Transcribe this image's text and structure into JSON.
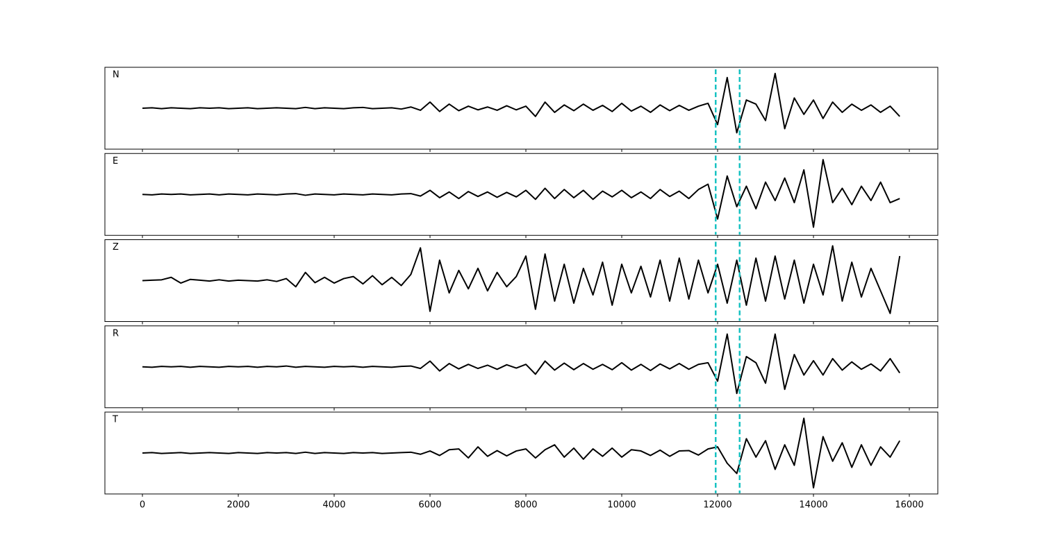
{
  "chart_data": {
    "type": "line",
    "x": [
      0,
      200,
      400,
      600,
      800,
      1000,
      1200,
      1400,
      1600,
      1800,
      2000,
      2200,
      2400,
      2600,
      2800,
      3000,
      3200,
      3400,
      3600,
      3800,
      4000,
      4200,
      4400,
      4600,
      4800,
      5000,
      5200,
      5400,
      5600,
      5800,
      6000,
      6200,
      6400,
      6600,
      6800,
      7000,
      7200,
      7400,
      7600,
      7800,
      8000,
      8200,
      8400,
      8600,
      8800,
      9000,
      9200,
      9400,
      9600,
      9800,
      10000,
      10200,
      10400,
      10600,
      10800,
      11000,
      11200,
      11400,
      11600,
      11800,
      12000,
      12200,
      12400,
      12600,
      12800,
      13000,
      13200,
      13400,
      13600,
      13800,
      14000,
      14200,
      14400,
      14600,
      14800,
      15000,
      15200,
      15400,
      15600,
      15800
    ],
    "series": [
      {
        "name": "N",
        "color": "#000000",
        "values": [
          0,
          0.01,
          -0.01,
          0.01,
          0,
          -0.01,
          0.01,
          0,
          0.01,
          -0.01,
          0,
          0.01,
          -0.01,
          0,
          0.01,
          0,
          -0.01,
          0.02,
          -0.01,
          0.01,
          0,
          -0.01,
          0.01,
          0.02,
          -0.01,
          0,
          0.01,
          -0.02,
          0.03,
          -0.05,
          0.15,
          -0.08,
          0.1,
          -0.06,
          0.05,
          -0.04,
          0.03,
          -0.05,
          0.06,
          -0.04,
          0.05,
          -0.2,
          0.15,
          -0.1,
          0.08,
          -0.06,
          0.1,
          -0.05,
          0.07,
          -0.08,
          0.12,
          -0.07,
          0.05,
          -0.1,
          0.08,
          -0.06,
          0.07,
          -0.05,
          0.05,
          0.12,
          -0.4,
          0.75,
          -0.6,
          0.2,
          0.1,
          -0.3,
          0.85,
          -0.5,
          0.25,
          -0.15,
          0.2,
          -0.25,
          0.15,
          -0.1,
          0.1,
          -0.05,
          0.08,
          -0.1,
          0.05,
          -0.2
        ]
      },
      {
        "name": "E",
        "color": "#000000",
        "values": [
          0,
          -0.01,
          0.01,
          0,
          0.01,
          -0.01,
          0,
          0.01,
          -0.01,
          0.01,
          0,
          -0.01,
          0.01,
          0,
          -0.01,
          0.01,
          0.02,
          -0.02,
          0.01,
          0,
          -0.01,
          0.01,
          0,
          -0.01,
          0.01,
          0,
          -0.01,
          0.01,
          0.02,
          -0.04,
          0.1,
          -0.08,
          0.06,
          -0.1,
          0.07,
          -0.05,
          0.06,
          -0.07,
          0.05,
          -0.06,
          0.1,
          -0.12,
          0.15,
          -0.1,
          0.12,
          -0.08,
          0.1,
          -0.12,
          0.08,
          -0.06,
          0.1,
          -0.08,
          0.06,
          -0.1,
          0.12,
          -0.05,
          0.08,
          -0.1,
          0.12,
          0.25,
          -0.6,
          0.45,
          -0.3,
          0.2,
          -0.35,
          0.3,
          -0.15,
          0.4,
          -0.2,
          0.6,
          -0.8,
          0.85,
          -0.2,
          0.15,
          -0.25,
          0.2,
          -0.15,
          0.3,
          -0.2,
          -0.1
        ]
      },
      {
        "name": "Z",
        "color": "#000000",
        "values": [
          0,
          0.01,
          0.02,
          0.08,
          -0.06,
          0.03,
          0.01,
          -0.01,
          0.02,
          -0.01,
          0.01,
          0,
          -0.01,
          0.02,
          -0.02,
          0.05,
          -0.15,
          0.2,
          -0.05,
          0.08,
          -0.06,
          0.05,
          0.1,
          -0.08,
          0.12,
          -0.1,
          0.08,
          -0.12,
          0.15,
          0.8,
          -0.75,
          0.5,
          -0.3,
          0.25,
          -0.2,
          0.3,
          -0.25,
          0.2,
          -0.15,
          0.1,
          0.6,
          -0.7,
          0.65,
          -0.5,
          0.4,
          -0.55,
          0.3,
          -0.35,
          0.45,
          -0.6,
          0.4,
          -0.3,
          0.35,
          -0.4,
          0.5,
          -0.5,
          0.55,
          -0.45,
          0.5,
          -0.3,
          0.4,
          -0.55,
          0.5,
          -0.6,
          0.55,
          -0.5,
          0.6,
          -0.45,
          0.5,
          -0.55,
          0.4,
          -0.35,
          0.85,
          -0.5,
          0.45,
          -0.4,
          0.3,
          -0.25,
          -0.8,
          0.6
        ]
      },
      {
        "name": "R",
        "color": "#000000",
        "values": [
          0,
          -0.01,
          0.01,
          0,
          0.01,
          -0.01,
          0.01,
          0,
          -0.01,
          0.01,
          0,
          0.01,
          -0.01,
          0.01,
          0,
          0.02,
          -0.01,
          0.01,
          0,
          -0.01,
          0.01,
          0,
          0.01,
          -0.01,
          0.01,
          0,
          -0.01,
          0.01,
          0.02,
          -0.04,
          0.14,
          -0.1,
          0.08,
          -0.05,
          0.06,
          -0.04,
          0.04,
          -0.06,
          0.05,
          -0.03,
          0.06,
          -0.18,
          0.14,
          -0.08,
          0.09,
          -0.07,
          0.08,
          -0.06,
          0.06,
          -0.07,
          0.1,
          -0.08,
          0.06,
          -0.09,
          0.07,
          -0.05,
          0.08,
          -0.06,
          0.06,
          0.1,
          -0.35,
          0.8,
          -0.65,
          0.25,
          0.1,
          -0.4,
          0.8,
          -0.55,
          0.3,
          -0.2,
          0.15,
          -0.2,
          0.2,
          -0.08,
          0.12,
          -0.06,
          0.07,
          -0.1,
          0.2,
          -0.15
        ]
      },
      {
        "name": "T",
        "color": "#000000",
        "values": [
          0,
          0.01,
          -0.01,
          0,
          0.01,
          -0.01,
          0,
          0.01,
          0,
          -0.01,
          0.01,
          0,
          -0.01,
          0.01,
          0,
          0.01,
          -0.01,
          0.02,
          -0.01,
          0.01,
          0,
          -0.01,
          0.01,
          0,
          0.01,
          -0.01,
          0,
          0.01,
          0.02,
          -0.03,
          0.05,
          -0.06,
          0.08,
          0.1,
          -0.12,
          0.15,
          -0.08,
          0.06,
          -0.07,
          0.05,
          0.1,
          -0.12,
          0.08,
          0.2,
          -0.1,
          0.12,
          -0.15,
          0.1,
          -0.08,
          0.12,
          -0.1,
          0.08,
          0.05,
          -0.06,
          0.07,
          -0.08,
          0.05,
          0.06,
          -0.05,
          0.1,
          0.15,
          -0.25,
          -0.5,
          0.35,
          -0.1,
          0.3,
          -0.4,
          0.2,
          -0.3,
          0.85,
          -0.85,
          0.4,
          -0.2,
          0.25,
          -0.35,
          0.2,
          -0.3,
          0.15,
          -0.1,
          0.3
        ]
      }
    ],
    "ylim": [
      -1,
      1
    ],
    "xlim": [
      -783,
      16594
    ],
    "xticks": [
      0,
      2000,
      4000,
      6000,
      8000,
      10000,
      12000,
      14000,
      16000
    ],
    "vlines": [
      11960,
      12460
    ],
    "vline_color": "#17c2c2"
  }
}
